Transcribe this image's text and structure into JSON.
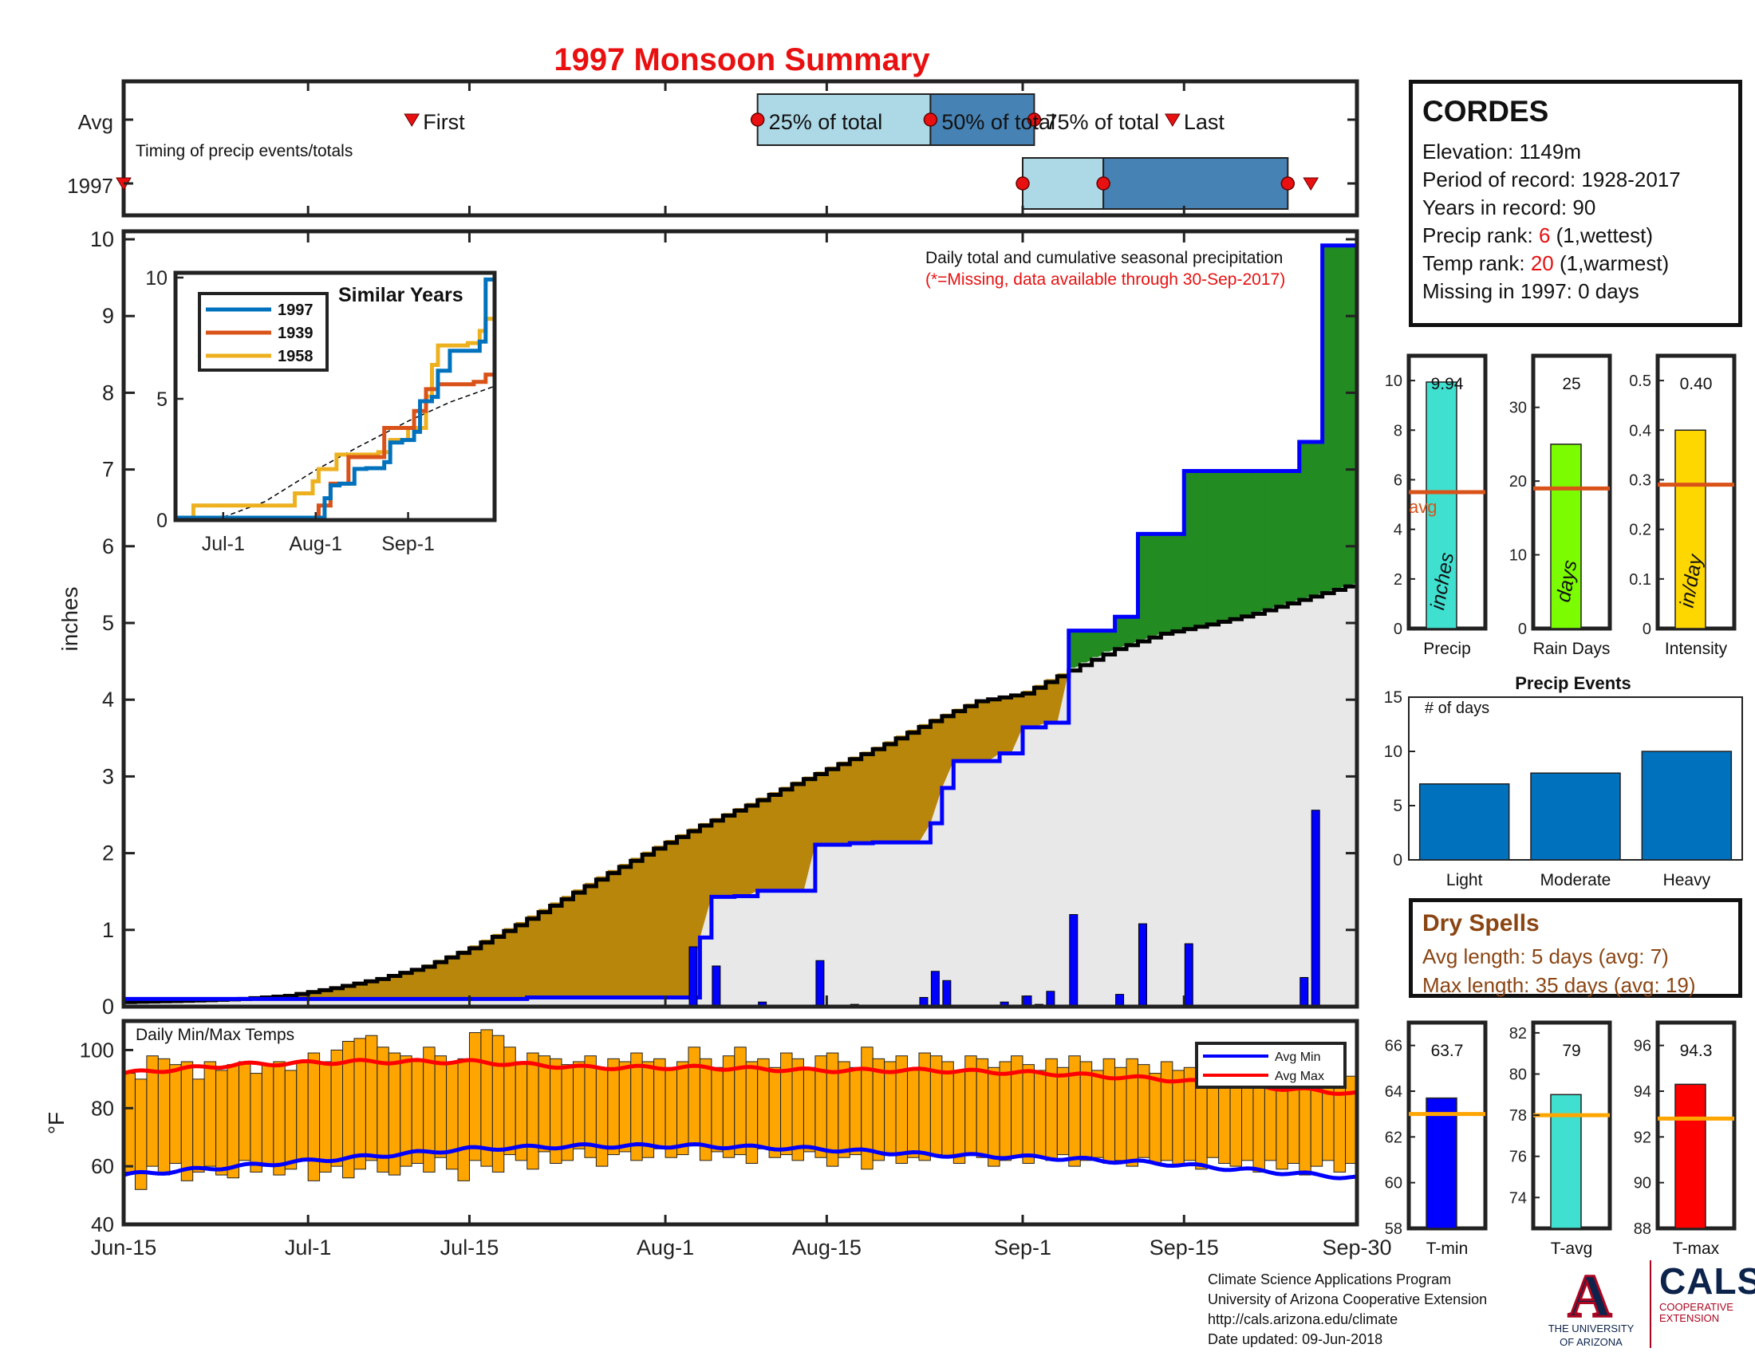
{
  "title": "1997 Monsoon Summary",
  "timing": {
    "label": "Timing of precip events/totals",
    "row_labels": [
      "Avg",
      "1997"
    ],
    "markers": [
      "First",
      "25% of total",
      "50% of total",
      "75% of total",
      "Last"
    ],
    "x_range_days": [
      0,
      107
    ],
    "avg": {
      "first": 25,
      "p25": 55,
      "p50": 70,
      "p75": 79,
      "last": 91
    },
    "year": {
      "first": 0,
      "p25": 78,
      "p50": 85,
      "p75": 101,
      "last": 103
    },
    "colors": {
      "light": "#add8e6",
      "dark": "#4682b4"
    }
  },
  "chart_data": [
    {
      "id": "precip-main",
      "type": "area",
      "title": "Daily total and cumulative seasonal precipitation",
      "subtitle": "(*=Missing, data available through 30-Sep-2017)",
      "xlabel": "",
      "ylabel": "inches",
      "ylim": [
        0,
        10
      ],
      "yticks": [
        0,
        1,
        2,
        3,
        4,
        5,
        6,
        7,
        8,
        9,
        10
      ],
      "xticks": [
        "Jun-15",
        "Jul-1",
        "Jul-15",
        "Aug-1",
        "Aug-15",
        "Sep-1",
        "Sep-15",
        "Sep-30"
      ],
      "xtick_days": [
        0,
        16,
        30,
        47,
        61,
        78,
        92,
        107
      ],
      "start_date": "Jun-15",
      "avg_cumulative": {
        "days": [
          0,
          6,
          10,
          14,
          18,
          22,
          26,
          30,
          34,
          38,
          42,
          46,
          50,
          54,
          58,
          62,
          66,
          70,
          74,
          78,
          82,
          86,
          90,
          94,
          98,
          102,
          107
        ],
        "values": [
          0.06,
          0.08,
          0.1,
          0.14,
          0.24,
          0.36,
          0.52,
          0.76,
          1.06,
          1.4,
          1.74,
          2.06,
          2.36,
          2.62,
          2.9,
          3.16,
          3.42,
          3.72,
          3.98,
          4.08,
          4.38,
          4.66,
          4.86,
          4.98,
          5.12,
          5.3,
          5.52
        ]
      },
      "year_cumulative": {
        "days": [
          0,
          35,
          49,
          50,
          51,
          53,
          55,
          59,
          60,
          63,
          65,
          70,
          71,
          72,
          76,
          78,
          80,
          82,
          86,
          88,
          92,
          101,
          102,
          104,
          107
        ],
        "values": [
          0.1,
          0.12,
          0.12,
          0.9,
          1.43,
          1.44,
          1.51,
          1.51,
          2.11,
          2.13,
          2.14,
          2.39,
          2.85,
          3.2,
          3.3,
          3.64,
          3.7,
          4.9,
          5.08,
          6.16,
          6.98,
          6.98,
          7.36,
          9.92,
          9.94
        ]
      },
      "daily_precip": {
        "days": [
          49,
          51,
          55,
          60,
          61,
          63,
          67,
          69,
          70,
          71,
          72,
          76,
          78,
          79,
          80,
          82,
          86,
          88,
          92,
          102,
          103
        ],
        "values": [
          0.78,
          0.53,
          0.06,
          0.6,
          0.02,
          0.03,
          0.02,
          0.12,
          0.46,
          0.34,
          0.02,
          0.06,
          0.14,
          0.03,
          0.2,
          1.2,
          0.16,
          1.08,
          0.82,
          0.38,
          2.56
        ]
      },
      "colors": {
        "above": "#228b22",
        "below": "#b8860b",
        "fill": "#e8e8e8",
        "year_line": "#0000ff",
        "avg_line": "#000000",
        "bars": "#0000ff"
      }
    },
    {
      "id": "similar-years",
      "type": "line",
      "title": "Similar Years",
      "ylim": [
        0,
        10
      ],
      "yticks": [
        0,
        5,
        10
      ],
      "xticks": [
        "Jul-1",
        "Aug-1",
        "Sep-1"
      ],
      "xtick_days": [
        16,
        47,
        78
      ],
      "series": [
        {
          "name": "1997",
          "color": "#0072bd",
          "days": [
            0,
            48,
            50,
            52,
            55,
            60,
            64,
            70,
            72,
            76,
            80,
            82,
            86,
            88,
            92,
            100,
            102,
            104,
            107
          ],
          "values": [
            0.1,
            0.1,
            0.9,
            1.43,
            1.5,
            2.11,
            2.14,
            2.39,
            3.2,
            3.3,
            3.64,
            4.9,
            5.08,
            6.16,
            6.98,
            6.98,
            7.36,
            9.92,
            9.94
          ]
        },
        {
          "name": "1939",
          "color": "#d95319",
          "days": [
            0,
            30,
            44,
            48,
            52,
            58,
            66,
            70,
            76,
            80,
            84,
            88,
            94,
            100,
            104,
            107
          ],
          "values": [
            0.05,
            0.05,
            0.1,
            0.6,
            1.5,
            2.6,
            2.6,
            3.8,
            3.8,
            4.5,
            5.4,
            5.6,
            5.6,
            5.7,
            6.0,
            6.0
          ]
        },
        {
          "name": "1958",
          "color": "#edb120",
          "days": [
            0,
            6,
            24,
            40,
            46,
            48,
            54,
            58,
            68,
            72,
            78,
            84,
            86,
            88,
            94,
            98,
            102,
            104,
            107
          ],
          "values": [
            0.1,
            0.6,
            0.6,
            1.1,
            1.6,
            2.1,
            2.7,
            2.7,
            2.8,
            3.3,
            3.8,
            5.1,
            6.4,
            7.2,
            7.2,
            7.3,
            7.8,
            8.3,
            8.9
          ]
        }
      ],
      "avg_line": {
        "days": [
          0,
          16,
          30,
          47,
          61,
          78,
          92,
          107
        ],
        "values": [
          0.06,
          0.12,
          0.76,
          2.06,
          3.0,
          4.08,
          4.86,
          5.52
        ]
      }
    },
    {
      "id": "precip-stats",
      "type": "bar",
      "panels": [
        {
          "label": "Precip",
          "unit": "inches",
          "value": 9.94,
          "value_label": "9.94",
          "avg": 5.5,
          "avg_label": "avg",
          "ylim": [
            0,
            11
          ],
          "yticks": [
            0,
            2,
            4,
            6,
            8,
            10
          ],
          "color": "#40e0d0"
        },
        {
          "label": "Rain Days",
          "unit": "days",
          "value": 25,
          "value_label": "25",
          "avg": 19,
          "ylim": [
            0,
            37
          ],
          "yticks": [
            0,
            10,
            20,
            30
          ],
          "color": "#7cfc00"
        },
        {
          "label": "Intensity",
          "unit": "in/day",
          "value": 0.4,
          "value_label": "0.40",
          "avg": 0.29,
          "ylim": [
            0,
            0.55
          ],
          "yticks": [
            0,
            0.1,
            0.2,
            0.3,
            0.4,
            0.5
          ],
          "color": "#ffd700"
        }
      ],
      "avg_color": "#d95319"
    },
    {
      "id": "precip-events",
      "type": "bar",
      "title": "Precip Events",
      "ylabel": "# of days",
      "categories": [
        "Light",
        "Moderate",
        "Heavy"
      ],
      "values": [
        7,
        8,
        10
      ],
      "ylim": [
        0,
        15
      ],
      "yticks": [
        0,
        5,
        10,
        15
      ],
      "color": "#0072bd"
    },
    {
      "id": "temps",
      "type": "bar",
      "title": "Daily Min/Max Temps",
      "ylabel": "°F",
      "ylim": [
        40,
        110
      ],
      "yticks": [
        40,
        60,
        80,
        100
      ],
      "legend": [
        "Avg Min",
        "Avg Max"
      ],
      "avg_max": {
        "days": [
          0,
          10,
          20,
          30,
          40,
          50,
          60,
          70,
          80,
          90,
          100,
          107
        ],
        "values": [
          92,
          95,
          96,
          96,
          94,
          94,
          93,
          93,
          92,
          90,
          87,
          85
        ]
      },
      "avg_min": {
        "days": [
          0,
          10,
          20,
          30,
          40,
          50,
          60,
          70,
          80,
          90,
          100,
          107
        ],
        "values": [
          57,
          60,
          63,
          66,
          67,
          67,
          66,
          64,
          63,
          61,
          58,
          56
        ]
      },
      "daily_max": [
        92,
        90,
        98,
        97,
        95,
        96,
        90,
        96,
        93,
        95,
        96,
        92,
        95,
        96,
        93,
        96,
        99,
        96,
        100,
        103,
        104,
        105,
        101,
        99,
        98,
        96,
        101,
        98,
        96,
        97,
        106,
        107,
        105,
        101,
        96,
        99,
        98,
        97,
        95,
        96,
        98,
        94,
        97,
        96,
        99,
        96,
        97,
        94,
        96,
        101,
        97,
        94,
        98,
        101,
        96,
        97,
        94,
        99,
        97,
        94,
        98,
        99,
        96,
        94,
        101,
        97,
        96,
        98,
        93,
        99,
        98,
        96,
        93,
        98,
        97,
        94,
        96,
        98,
        95,
        93,
        97,
        94,
        98,
        96,
        93,
        97,
        94,
        97,
        95,
        92,
        96,
        93,
        94,
        96,
        92,
        95,
        93,
        91,
        94,
        92,
        90,
        93,
        91,
        89,
        92,
        90,
        91
      ],
      "daily_min": [
        58,
        52,
        60,
        57,
        61,
        55,
        58,
        60,
        57,
        56,
        62,
        58,
        60,
        57,
        59,
        62,
        55,
        58,
        60,
        56,
        59,
        62,
        58,
        57,
        60,
        61,
        58,
        63,
        59,
        55,
        62,
        60,
        58,
        64,
        62,
        59,
        65,
        61,
        62,
        66,
        63,
        60,
        64,
        65,
        62,
        63,
        66,
        63,
        64,
        67,
        62,
        65,
        63,
        64,
        61,
        66,
        63,
        64,
        62,
        65,
        63,
        60,
        63,
        64,
        59,
        62,
        64,
        61,
        63,
        62,
        64,
        63,
        61,
        64,
        63,
        60,
        62,
        63,
        61,
        63,
        62,
        64,
        60,
        62,
        63,
        61,
        62,
        60,
        63,
        61,
        62,
        60,
        62,
        59,
        63,
        61,
        60,
        62,
        58,
        62,
        59,
        61,
        57,
        60,
        62,
        58,
        61,
        62
      ],
      "colors": {
        "bars": "#ffa500",
        "avg_min": "#0000ff",
        "avg_max": "#ff0000"
      }
    },
    {
      "id": "temp-stats",
      "type": "bar",
      "panels": [
        {
          "label": "T-min",
          "value": 63.7,
          "value_label": "63.7",
          "avg": 63,
          "ylim": [
            58,
            67
          ],
          "yticks": [
            58,
            60,
            62,
            64,
            66
          ],
          "color": "#0000ff"
        },
        {
          "label": "T-avg",
          "value": 79,
          "value_label": "79",
          "avg": 78,
          "ylim": [
            72.5,
            82.5
          ],
          "yticks": [
            74,
            76,
            78,
            80,
            82
          ],
          "color": "#40e0d0"
        },
        {
          "label": "T-max",
          "value": 94.3,
          "value_label": "94.3",
          "avg": 92.8,
          "ylim": [
            88,
            97
          ],
          "yticks": [
            88,
            90,
            92,
            94,
            96
          ],
          "color": "#ff0000"
        }
      ],
      "avg_color": "#ffa500"
    }
  ],
  "station": {
    "name": "CORDES",
    "elevation": "Elevation: 1149m",
    "period": "Period of record: 1928-2017",
    "years": "Years in record: 90",
    "precip_rank_prefix": "Precip rank: ",
    "precip_rank": "6",
    "precip_rank_suffix": " (1,wettest)",
    "temp_rank_prefix": "Temp rank: ",
    "temp_rank": "20",
    "temp_rank_suffix": " (1,warmest)",
    "missing": "Missing in 1997: 0 days"
  },
  "dry_spells": {
    "title": "Dry Spells",
    "avg_length": "Avg length: 5 days (avg: 7)",
    "max_length": "Max length: 35 days (avg: 19)"
  },
  "credits": {
    "line1": "Climate Science Applications Program",
    "line2": "University of Arizona Cooperative Extension",
    "line3": "http://cals.arizona.edu/climate",
    "line4": " Date updated: 09-Jun-2018"
  },
  "logos": {
    "ua_mark": "A",
    "ua_line1": "THE UNIVERSITY",
    "ua_line2": "OF ARIZONA",
    "cals": "CALS",
    "cals_line1": "COOPERATIVE",
    "cals_line2": "EXTENSION"
  }
}
